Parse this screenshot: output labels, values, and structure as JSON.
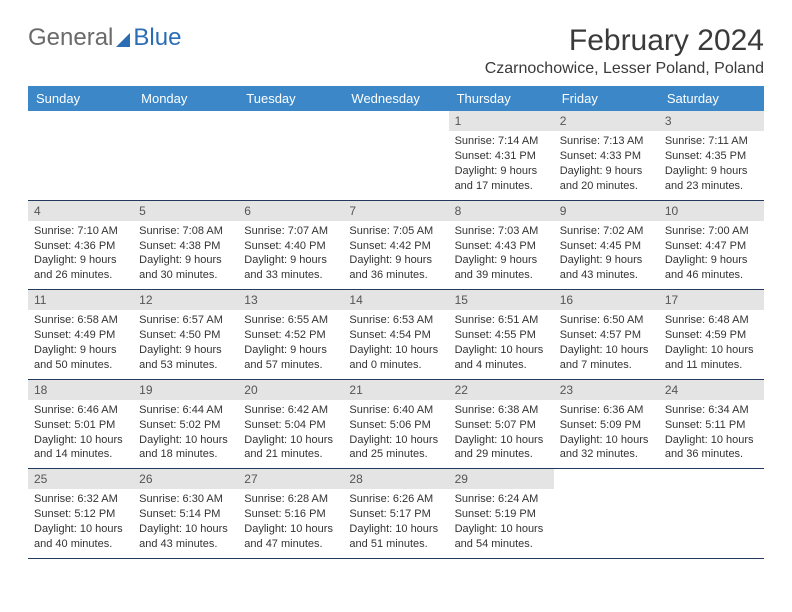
{
  "brand": {
    "part1": "General",
    "part2": "Blue"
  },
  "title": "February 2024",
  "location": "Czarnochowice, Lesser Poland, Poland",
  "colors": {
    "header_bg": "#3b87c8",
    "header_text": "#ffffff",
    "daynum_bg": "#e4e4e4",
    "divider": "#23395d",
    "brand_blue": "#2a6db5",
    "text": "#333333"
  },
  "weekdays": [
    "Sunday",
    "Monday",
    "Tuesday",
    "Wednesday",
    "Thursday",
    "Friday",
    "Saturday"
  ],
  "weeks": [
    [
      null,
      null,
      null,
      null,
      {
        "n": "1",
        "sr": "7:14 AM",
        "ss": "4:31 PM",
        "dl": "9 hours and 17 minutes."
      },
      {
        "n": "2",
        "sr": "7:13 AM",
        "ss": "4:33 PM",
        "dl": "9 hours and 20 minutes."
      },
      {
        "n": "3",
        "sr": "7:11 AM",
        "ss": "4:35 PM",
        "dl": "9 hours and 23 minutes."
      }
    ],
    [
      {
        "n": "4",
        "sr": "7:10 AM",
        "ss": "4:36 PM",
        "dl": "9 hours and 26 minutes."
      },
      {
        "n": "5",
        "sr": "7:08 AM",
        "ss": "4:38 PM",
        "dl": "9 hours and 30 minutes."
      },
      {
        "n": "6",
        "sr": "7:07 AM",
        "ss": "4:40 PM",
        "dl": "9 hours and 33 minutes."
      },
      {
        "n": "7",
        "sr": "7:05 AM",
        "ss": "4:42 PM",
        "dl": "9 hours and 36 minutes."
      },
      {
        "n": "8",
        "sr": "7:03 AM",
        "ss": "4:43 PM",
        "dl": "9 hours and 39 minutes."
      },
      {
        "n": "9",
        "sr": "7:02 AM",
        "ss": "4:45 PM",
        "dl": "9 hours and 43 minutes."
      },
      {
        "n": "10",
        "sr": "7:00 AM",
        "ss": "4:47 PM",
        "dl": "9 hours and 46 minutes."
      }
    ],
    [
      {
        "n": "11",
        "sr": "6:58 AM",
        "ss": "4:49 PM",
        "dl": "9 hours and 50 minutes."
      },
      {
        "n": "12",
        "sr": "6:57 AM",
        "ss": "4:50 PM",
        "dl": "9 hours and 53 minutes."
      },
      {
        "n": "13",
        "sr": "6:55 AM",
        "ss": "4:52 PM",
        "dl": "9 hours and 57 minutes."
      },
      {
        "n": "14",
        "sr": "6:53 AM",
        "ss": "4:54 PM",
        "dl": "10 hours and 0 minutes."
      },
      {
        "n": "15",
        "sr": "6:51 AM",
        "ss": "4:55 PM",
        "dl": "10 hours and 4 minutes."
      },
      {
        "n": "16",
        "sr": "6:50 AM",
        "ss": "4:57 PM",
        "dl": "10 hours and 7 minutes."
      },
      {
        "n": "17",
        "sr": "6:48 AM",
        "ss": "4:59 PM",
        "dl": "10 hours and 11 minutes."
      }
    ],
    [
      {
        "n": "18",
        "sr": "6:46 AM",
        "ss": "5:01 PM",
        "dl": "10 hours and 14 minutes."
      },
      {
        "n": "19",
        "sr": "6:44 AM",
        "ss": "5:02 PM",
        "dl": "10 hours and 18 minutes."
      },
      {
        "n": "20",
        "sr": "6:42 AM",
        "ss": "5:04 PM",
        "dl": "10 hours and 21 minutes."
      },
      {
        "n": "21",
        "sr": "6:40 AM",
        "ss": "5:06 PM",
        "dl": "10 hours and 25 minutes."
      },
      {
        "n": "22",
        "sr": "6:38 AM",
        "ss": "5:07 PM",
        "dl": "10 hours and 29 minutes."
      },
      {
        "n": "23",
        "sr": "6:36 AM",
        "ss": "5:09 PM",
        "dl": "10 hours and 32 minutes."
      },
      {
        "n": "24",
        "sr": "6:34 AM",
        "ss": "5:11 PM",
        "dl": "10 hours and 36 minutes."
      }
    ],
    [
      {
        "n": "25",
        "sr": "6:32 AM",
        "ss": "5:12 PM",
        "dl": "10 hours and 40 minutes."
      },
      {
        "n": "26",
        "sr": "6:30 AM",
        "ss": "5:14 PM",
        "dl": "10 hours and 43 minutes."
      },
      {
        "n": "27",
        "sr": "6:28 AM",
        "ss": "5:16 PM",
        "dl": "10 hours and 47 minutes."
      },
      {
        "n": "28",
        "sr": "6:26 AM",
        "ss": "5:17 PM",
        "dl": "10 hours and 51 minutes."
      },
      {
        "n": "29",
        "sr": "6:24 AM",
        "ss": "5:19 PM",
        "dl": "10 hours and 54 minutes."
      },
      null,
      null
    ]
  ],
  "labels": {
    "sunrise": "Sunrise: ",
    "sunset": "Sunset: ",
    "daylight": "Daylight: "
  }
}
